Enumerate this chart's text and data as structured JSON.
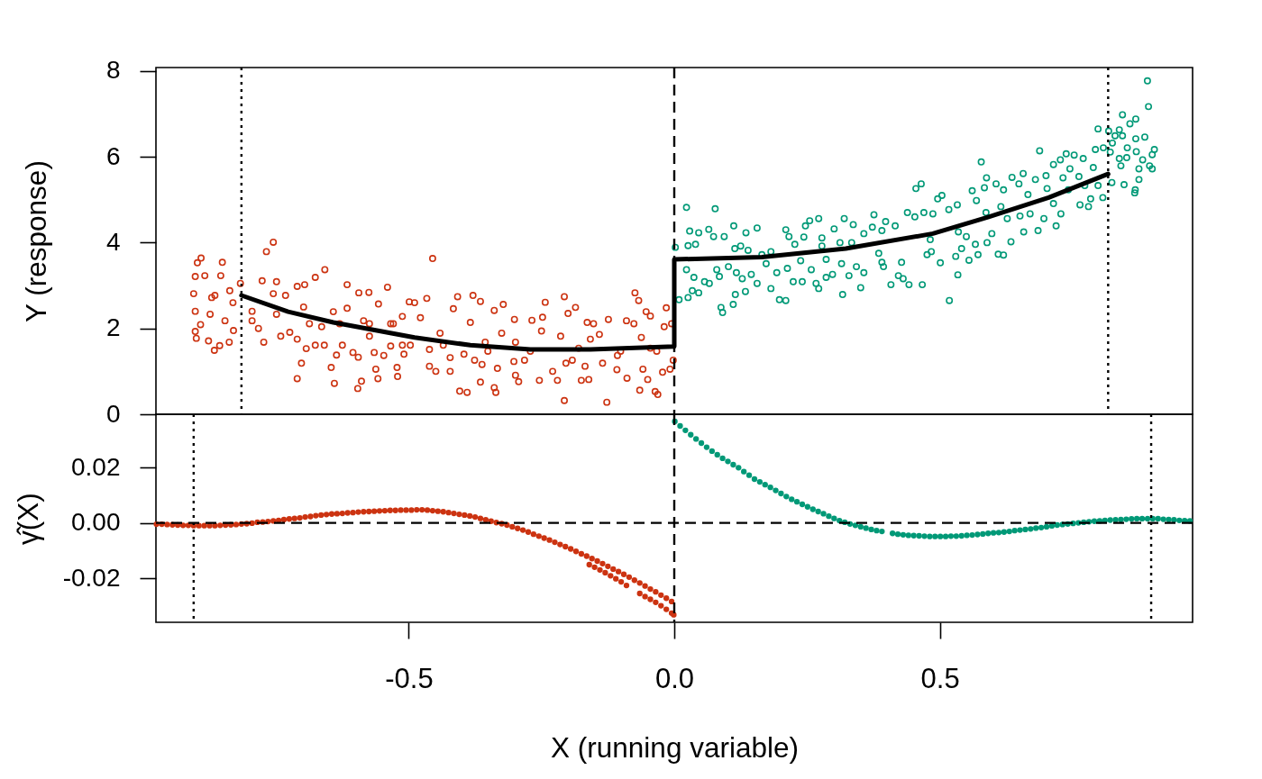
{
  "chart_data": [
    {
      "type": "scatter",
      "ylabel": "Y (response)",
      "xlim": [
        -0.976,
        0.976
      ],
      "ylim": [
        0,
        8.08
      ],
      "yticks": [
        0,
        2,
        4,
        6,
        8
      ],
      "tick_labels": "y",
      "marker": "circle",
      "series": [
        {
          "color": "#cc3311",
          "x": [
            -0.905,
            -0.902,
            -0.898,
            -0.891,
            -0.851,
            -0.854,
            -0.884,
            -0.902,
            -0.902,
            -0.9,
            -0.892,
            -0.877,
            -0.866,
            -0.856,
            -0.838,
            -0.83,
            -0.846,
            -0.874,
            -0.871,
            -0.865,
            -0.837,
            -0.817,
            -0.831,
            -0.755,
            -0.768,
            -0.776,
            -0.749,
            -0.795,
            -0.783,
            -0.773,
            -0.755,
            -0.732,
            -0.71,
            -0.696,
            -0.676,
            -0.658,
            -0.741,
            -0.724,
            -0.71,
            -0.702,
            -0.71,
            -0.693,
            -0.676,
            -0.659,
            -0.646,
            -0.64,
            -0.636,
            -0.687,
            -0.664,
            -0.642,
            -0.616,
            -0.616,
            -0.625,
            -0.605,
            -0.595,
            -0.596,
            -0.589,
            -0.594,
            -0.575,
            -0.585,
            -0.574,
            -0.565,
            -0.562,
            -0.558,
            -0.547,
            -0.557,
            -0.54,
            -0.534,
            -0.522,
            -0.521,
            -0.509,
            -0.499,
            -0.512,
            -0.795,
            -0.749,
            -0.698,
            -0.63,
            -0.574,
            -0.529,
            -0.534,
            -0.512,
            -0.455,
            -0.489,
            -0.466,
            -0.478,
            -0.461,
            -0.461,
            -0.449,
            -0.422,
            -0.422,
            -0.435,
            -0.441,
            -0.416,
            -0.408,
            -0.404,
            -0.39,
            -0.396,
            -0.379,
            -0.365,
            -0.384,
            -0.376,
            -0.362,
            -0.365,
            -0.339,
            -0.336,
            -0.333,
            -0.351,
            -0.339,
            -0.322,
            -0.301,
            -0.325,
            -0.299,
            -0.302,
            -0.299,
            -0.293,
            -0.282,
            -0.268,
            -0.248,
            -0.243,
            -0.25,
            -0.254,
            -0.229,
            -0.22,
            -0.207,
            -0.2,
            -0.186,
            -0.214,
            -0.204,
            -0.207,
            -0.192,
            -0.175,
            -0.168,
            -0.161,
            -0.164,
            -0.152,
            -0.158,
            -0.127,
            -0.124,
            -0.135,
            -0.108,
            -0.107,
            -0.09,
            -0.089,
            -0.076,
            -0.074,
            -0.067,
            -0.065,
            -0.059,
            -0.053,
            -0.045,
            -0.05,
            -0.036,
            -0.031,
            -0.033,
            -0.015,
            -0.019,
            -0.022,
            -0.008,
            -0.005,
            -0.002,
            -0.497,
            -0.356,
            -0.271,
            -0.18,
            -0.101,
            -0.045,
            -0.141,
            -0.062
          ],
          "values": [
            2.81,
            3.21,
            3.53,
            3.64,
            3.54,
            3.23,
            3.23,
            2.4,
            1.93,
            1.77,
            2.09,
            1.71,
            1.49,
            1.6,
            1.68,
            1.95,
            2.18,
            2.33,
            2.72,
            2.77,
            2.88,
            3.05,
            2.6,
            4.01,
            3.79,
            3.11,
            3.09,
            2.18,
            2.0,
            1.68,
            2.81,
            2.77,
            2.98,
            3.02,
            3.19,
            3.37,
            1.82,
            1.91,
            1.75,
            1.19,
            0.83,
            1.53,
            1.61,
            1.61,
            1.09,
            0.72,
            1.38,
            2.11,
            2.04,
            2.39,
            3.02,
            2.47,
            1.61,
            1.44,
            1.33,
            0.6,
            0.77,
            2.83,
            2.84,
            2.18,
            1.82,
            1.44,
            1.05,
            0.83,
            1.37,
            2.57,
            2.96,
            2.11,
            1.09,
            0.88,
            1.4,
            2.62,
            2.28,
            2.4,
            2.33,
            2.5,
            2.11,
            2.11,
            2.11,
            1.59,
            1.61,
            3.63,
            2.6,
            2.7,
            2.25,
            1.51,
            1.12,
            1.0,
            1.0,
            1.32,
            1.61,
            1.89,
            2.46,
            2.74,
            0.54,
            0.51,
            1.4,
            2.77,
            2.63,
            2.14,
            1.26,
            1.16,
            0.75,
            0.62,
            0.51,
            1.07,
            1.47,
            2.42,
            2.56,
            2.21,
            1.89,
            1.68,
            1.23,
            0.91,
            0.76,
            1.26,
            2.19,
            2.26,
            2.61,
            1.94,
            0.79,
            1.0,
            0.79,
            2.74,
            2.35,
            2.49,
            1.82,
            1.19,
            0.32,
            1.26,
            0.79,
            1.12,
            0.81,
            2.14,
            2.11,
            1.75,
            0.28,
            2.21,
            1.19,
            1.04,
            1.37,
            2.18,
            0.84,
            2.11,
            2.83,
            2.65,
            0.56,
            1.05,
            2.39,
            2.29,
            0.81,
            0.53,
            0.46,
            1.47,
            2.48,
            2.04,
            0.98,
            1.05,
            2.11,
            1.26,
            1.61,
            1.68,
            1.47,
            1.54,
            1.47,
            1.54,
            1.86,
            1.79
          ]
        },
        {
          "color": "#009977",
          "x": [
            0.002,
            0.023,
            0.077,
            0.029,
            0.046,
            0.026,
            0.04,
            0.009,
            0.026,
            0.034,
            0.046,
            0.057,
            0.066,
            0.023,
            0.037,
            0.065,
            0.074,
            0.088,
            0.091,
            0.111,
            0.115,
            0.134,
            0.112,
            0.135,
            0.156,
            0.094,
            0.08,
            0.085,
            0.102,
            0.114,
            0.117,
            0.128,
            0.139,
            0.145,
            0.156,
            0.165,
            0.173,
            0.182,
            0.193,
            0.198,
            0.21,
            0.213,
            0.21,
            0.216,
            0.227,
            0.224,
            0.241,
            0.244,
            0.247,
            0.255,
            0.272,
            0.258,
            0.272,
            0.267,
            0.278,
            0.278,
            0.286,
            0.286,
            0.298,
            0.301,
            0.312,
            0.32,
            0.317,
            0.315,
            0.329,
            0.337,
            0.343,
            0.351,
            0.357,
            0.357,
            0.373,
            0.376,
            0.385,
            0.391,
            0.394,
            0.398,
            0.408,
            0.416,
            0.422,
            0.431,
            0.428,
            0.442,
            0.439,
            0.455,
            0.465,
            0.467,
            0.453,
            0.47,
            0.476,
            0.482,
            0.125,
            0.182,
            0.238,
            0.334,
            0.391,
            0.518,
            0.534,
            0.501,
            0.484,
            0.487,
            0.504,
            0.496,
            0.517,
            0.533,
            0.535,
            0.541,
            0.53,
            0.555,
            0.55,
            0.561,
            0.569,
            0.567,
            0.572,
            0.578,
            0.584,
            0.588,
            0.587,
            0.589,
            0.598,
            0.61,
            0.62,
            0.606,
            0.615,
            0.62,
            0.634,
            0.627,
            0.636,
            0.651,
            0.649,
            0.657,
            0.658,
            0.666,
            0.67,
            0.68,
            0.685,
            0.688,
            0.696,
            0.7,
            0.702,
            0.714,
            0.714,
            0.719,
            0.728,
            0.727,
            0.732,
            0.738,
            0.742,
            0.745,
            0.753,
            0.762,
            0.764,
            0.77,
            0.773,
            0.78,
            0.784,
            0.789,
            0.793,
            0.798,
            0.798,
            0.807,
            0.808,
            0.818,
            0.821,
            0.825,
            0.83,
            0.824,
            0.838,
            0.844,
            0.844,
            0.838,
            0.841,
            0.847,
            0.853,
            0.852,
            0.858,
            0.869,
            0.869,
            0.87,
            0.875,
            0.875,
            0.868,
            0.867,
            0.882,
            0.886,
            0.891,
            0.893,
            0.895,
            0.9,
            0.9,
            0.904
          ],
          "values": [
            3.89,
            4.82,
            4.79,
            4.27,
            4.23,
            3.93,
            3.96,
            2.67,
            2.72,
            2.88,
            2.83,
            3.09,
            3.05,
            3.37,
            3.19,
            4.31,
            4.14,
            2.49,
            2.37,
            2.56,
            2.79,
            2.86,
            4.39,
            4.23,
            4.34,
            4.14,
            3.37,
            3.21,
            3.44,
            3.86,
            3.3,
            3.16,
            3.82,
            3.26,
            3.05,
            3.72,
            3.51,
            2.93,
            3.3,
            2.67,
            2.65,
            3.4,
            4.3,
            4.14,
            3.96,
            3.09,
            3.09,
            4.13,
            4.39,
            4.51,
            4.56,
            3.37,
            2.93,
            3.05,
            4.11,
            3.92,
            3.61,
            3.19,
            3.26,
            4.32,
            4.0,
            4.56,
            2.79,
            3.51,
            3.23,
            4.42,
            3.44,
            2.95,
            3.3,
            4.21,
            4.36,
            4.65,
            3.75,
            3.54,
            3.44,
            4.49,
            3.02,
            4.39,
            3.23,
            3.16,
            3.54,
            3.02,
            4.7,
            5.26,
            5.37,
            3.02,
            4.6,
            4.7,
            3.72,
            4.07,
            3.92,
            3.79,
            3.58,
            4.0,
            4.28,
            2.65,
            3.25,
            3.53,
            3.79,
            4.67,
            5.1,
            5.02,
            4.77,
            4.88,
            4.25,
            3.86,
            3.68,
            3.59,
            4.14,
            5.21,
            4.98,
            3.96,
            3.72,
            5.88,
            5.28,
            5.51,
            4.7,
            4.0,
            4.21,
            3.73,
            3.71,
            5.37,
            4.84,
            5.23,
            4.02,
            4.56,
            5.52,
            4.62,
            5.37,
            5.61,
            4.25,
            5.12,
            4.67,
            5.47,
            4.28,
            6.14,
            4.56,
            5.56,
            5.26,
            5.82,
            4.91,
            4.39,
            4.67,
            5.93,
            5.51,
            6.07,
            5.23,
            5.72,
            6.04,
            5.54,
            4.88,
            5.96,
            5.33,
            4.84,
            5.02,
            5.75,
            6.17,
            6.65,
            5.33,
            5.05,
            6.21,
            6.6,
            6.11,
            6.32,
            6.49,
            5.4,
            6.63,
            6.98,
            6.49,
            5.96,
            5.79,
            5.35,
            6.21,
            5.98,
            6.77,
            6.88,
            6.42,
            6.12,
            5.72,
            5.47,
            5.23,
            5.16,
            5.93,
            6.46,
            7.77,
            7.17,
            5.79,
            5.72,
            6.05,
            6.17
          ]
        },
        {
          "type": "line",
          "marker": "none",
          "color": "#000000",
          "x": [
            -0.815,
            -0.727,
            -0.642,
            -0.489,
            -0.384,
            -0.271,
            -0.158,
            0,
            0,
            0.165,
            0.323,
            0.487,
            0.592,
            0.705,
            0.817
          ],
          "values": [
            2.77,
            2.39,
            2.14,
            1.79,
            1.61,
            1.51,
            1.51,
            1.58,
            3.61,
            3.66,
            3.86,
            4.21,
            4.6,
            5.05,
            5.6
          ]
        }
      ],
      "ref_lines": [
        {
          "axis": "x",
          "value": -0.815,
          "line_style": "dotted"
        },
        {
          "axis": "x",
          "value": 0,
          "line_style": "dashed"
        },
        {
          "axis": "x",
          "value": 0.817,
          "line_style": "dotted"
        }
      ]
    },
    {
      "type": "scatter",
      "xlabel": "X (running variable)",
      "ylabel": "γ̂(X)",
      "xlim": [
        -0.976,
        0.976
      ],
      "ylim": [
        -0.0359,
        0.0392
      ],
      "xticks": [
        -0.5,
        {
          "value": 0,
          "label": "0.0"
        },
        0.5
      ],
      "yticks": [
        -0.02,
        {
          "value": 0,
          "label": "0.00"
        },
        0.02
      ],
      "marker": "circle",
      "series": [
        {
          "color": "#cc3311",
          "x": [
            -0.975,
            -0.965,
            -0.955,
            -0.945,
            -0.935,
            -0.925,
            -0.915,
            -0.905,
            -0.895,
            -0.885,
            -0.875,
            -0.865,
            -0.855,
            -0.845,
            -0.835,
            -0.825,
            -0.815,
            -0.805,
            -0.795,
            -0.785,
            -0.775,
            -0.765,
            -0.755,
            -0.745,
            -0.735,
            -0.725,
            -0.715,
            -0.705,
            -0.695,
            -0.685,
            -0.675,
            -0.665,
            -0.655,
            -0.645,
            -0.635,
            -0.625,
            -0.615,
            -0.605,
            -0.595,
            -0.585,
            -0.575,
            -0.565,
            -0.555,
            -0.545,
            -0.535,
            -0.525,
            -0.515,
            -0.505,
            -0.495,
            -0.485,
            -0.475,
            -0.465,
            -0.455,
            -0.445,
            -0.435,
            -0.425,
            -0.415,
            -0.405,
            -0.395,
            -0.385,
            -0.375,
            -0.365,
            -0.355,
            -0.345,
            -0.335,
            -0.325,
            -0.315,
            -0.305,
            -0.295,
            -0.285,
            -0.275,
            -0.265,
            -0.255,
            -0.245,
            -0.235,
            -0.225,
            -0.215,
            -0.205,
            -0.195,
            -0.185,
            -0.175,
            -0.165,
            -0.155,
            -0.145,
            -0.135,
            -0.125,
            -0.115,
            -0.105,
            -0.095,
            -0.085,
            -0.075,
            -0.065,
            -0.055,
            -0.045,
            -0.035,
            -0.025,
            -0.015,
            -0.005,
            -0.16,
            -0.15,
            -0.14,
            -0.13,
            -0.12,
            -0.11,
            -0.1,
            -0.09,
            -0.065,
            -0.055,
            -0.045,
            -0.035,
            -0.025,
            -0.015,
            -0.005,
            -0.001
          ],
          "values": [
            -0.0005,
            -0.0005,
            -0.0006,
            -0.0007,
            -0.0008,
            -0.0009,
            -0.0009,
            -0.001,
            -0.001,
            -0.001,
            -0.001,
            -0.001,
            -0.0009,
            -0.0008,
            -0.0007,
            -0.0006,
            -0.0004,
            -0.0003,
            -0.0001,
            0.0002,
            0.0003,
            0.0005,
            0.0007,
            0.0009,
            0.0012,
            0.0014,
            0.0016,
            0.0018,
            0.0021,
            0.0023,
            0.0026,
            0.0028,
            0.003,
            0.0032,
            0.0033,
            0.0034,
            0.0036,
            0.0037,
            0.0039,
            0.004,
            0.0041,
            0.0042,
            0.0043,
            0.0044,
            0.0045,
            0.0045,
            0.0046,
            0.0046,
            0.0046,
            0.0047,
            0.0047,
            0.0046,
            0.0044,
            0.0042,
            0.004,
            0.0037,
            0.0034,
            0.0031,
            0.0028,
            0.0025,
            0.0021,
            0.0016,
            0.0011,
            0.0006,
            0.0001,
            -0.0003,
            -0.0008,
            -0.0014,
            -0.002,
            -0.0026,
            -0.0033,
            -0.0041,
            -0.0048,
            -0.0055,
            -0.0062,
            -0.007,
            -0.0078,
            -0.0086,
            -0.0094,
            -0.0103,
            -0.0112,
            -0.012,
            -0.0129,
            -0.0138,
            -0.0147,
            -0.0157,
            -0.0167,
            -0.0176,
            -0.0186,
            -0.0196,
            -0.0207,
            -0.0217,
            -0.0228,
            -0.0239,
            -0.0249,
            -0.0261,
            -0.0272,
            -0.0284,
            -0.0151,
            -0.016,
            -0.017,
            -0.018,
            -0.0191,
            -0.0202,
            -0.0213,
            -0.0226,
            -0.0255,
            -0.0266,
            -0.0276,
            -0.0287,
            -0.0299,
            -0.0312,
            -0.0326,
            -0.0332
          ]
        },
        {
          "color": "#009977",
          "x": [
            0.001,
            0.011,
            0.021,
            0.031,
            0.041,
            0.051,
            0.061,
            0.071,
            0.081,
            0.091,
            0.101,
            0.111,
            0.121,
            0.131,
            0.141,
            0.151,
            0.161,
            0.171,
            0.181,
            0.191,
            0.201,
            0.211,
            0.221,
            0.231,
            0.241,
            0.251,
            0.261,
            0.271,
            0.281,
            0.291,
            0.301,
            0.311,
            0.321,
            0.331,
            0.341,
            0.351,
            0.361,
            0.371,
            0.381,
            0.391,
            0.411,
            0.421,
            0.431,
            0.441,
            0.451,
            0.461,
            0.471,
            0.481,
            0.491,
            0.501,
            0.511,
            0.521,
            0.531,
            0.541,
            0.551,
            0.561,
            0.571,
            0.581,
            0.591,
            0.601,
            0.611,
            0.621,
            0.631,
            0.641,
            0.651,
            0.661,
            0.671,
            0.681,
            0.691,
            0.701,
            0.711,
            0.721,
            0.731,
            0.741,
            0.751,
            0.761,
            0.771,
            0.781,
            0.791,
            0.801,
            0.811,
            0.821,
            0.831,
            0.841,
            0.851,
            0.861,
            0.871,
            0.881,
            0.891,
            0.901,
            0.911,
            0.921,
            0.931,
            0.941,
            0.951,
            0.961,
            0.971
          ],
          "values": [
            0.0366,
            0.035,
            0.0334,
            0.0318,
            0.0303,
            0.0288,
            0.0273,
            0.0259,
            0.0246,
            0.0233,
            0.0222,
            0.021,
            0.0199,
            0.0185,
            0.0172,
            0.0158,
            0.0148,
            0.0138,
            0.0128,
            0.0117,
            0.0106,
            0.0095,
            0.0085,
            0.0076,
            0.0067,
            0.0058,
            0.0049,
            0.0041,
            0.0033,
            0.0024,
            0.0016,
            0.0008,
            0.0002,
            -0.0004,
            -0.0009,
            -0.0014,
            -0.0019,
            -0.0024,
            -0.0028,
            -0.0031,
            -0.0038,
            -0.0041,
            -0.0043,
            -0.0045,
            -0.0046,
            -0.0047,
            -0.0048,
            -0.0049,
            -0.0049,
            -0.0049,
            -0.0049,
            -0.0048,
            -0.0048,
            -0.0047,
            -0.0045,
            -0.0044,
            -0.0042,
            -0.004,
            -0.0038,
            -0.0036,
            -0.0035,
            -0.0033,
            -0.0031,
            -0.0028,
            -0.0026,
            -0.0024,
            -0.0022,
            -0.0019,
            -0.0017,
            -0.0014,
            -0.0011,
            -0.0008,
            -0.0006,
            -0.0004,
            -0.0002,
            0,
            0.0002,
            0.0004,
            0.0006,
            0.0007,
            0.0009,
            0.001,
            0.0011,
            0.0012,
            0.0013,
            0.0014,
            0.0015,
            0.0015,
            0.0015,
            0.0015,
            0.0015,
            0.0013,
            0.0012,
            0.0011,
            0.0009,
            0.0008,
            0.0007
          ]
        }
      ],
      "ref_lines": [
        {
          "axis": "x",
          "value": -0.905,
          "line_style": "dotted"
        },
        {
          "axis": "x",
          "value": 0,
          "line_style": "dashed"
        },
        {
          "axis": "x",
          "value": 0.898,
          "line_style": "dotted"
        },
        {
          "axis": "y",
          "value": 0,
          "line_style": "dashed"
        }
      ]
    }
  ]
}
